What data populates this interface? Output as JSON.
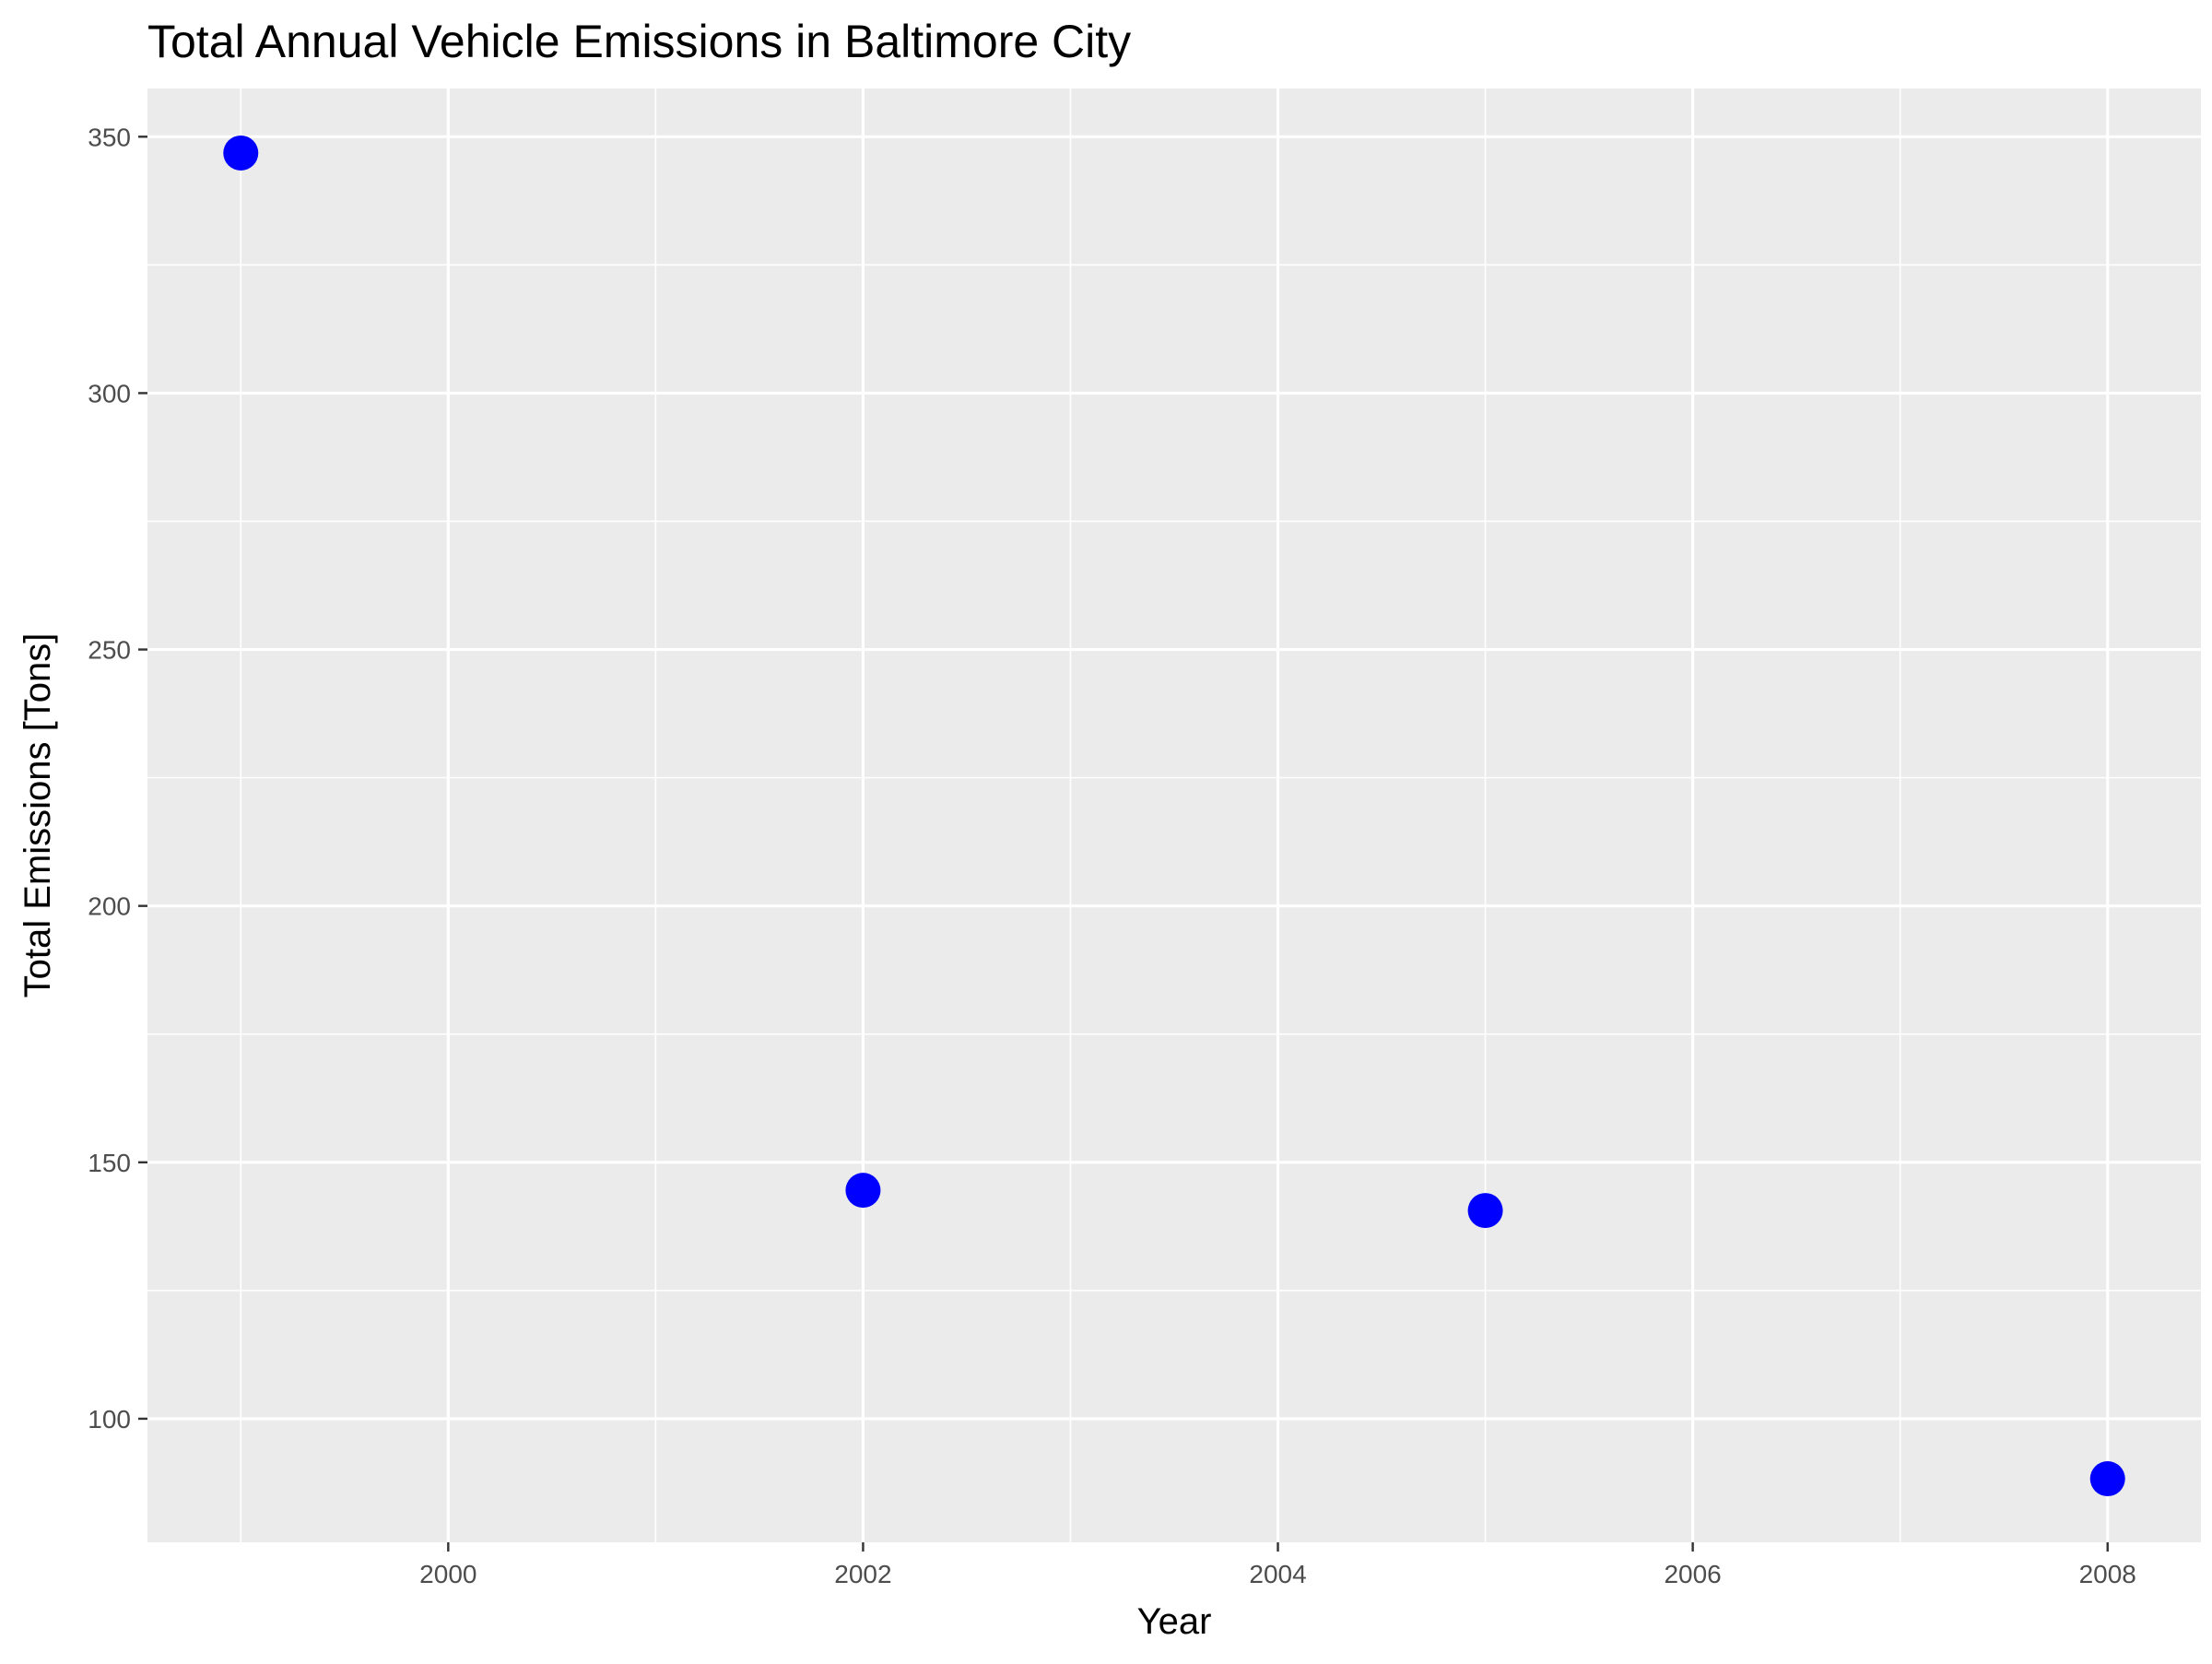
{
  "chart_data": {
    "type": "scatter",
    "title": "Total Annual Vehicle Emissions in Baltimore City",
    "xlabel": "Year",
    "ylabel": "Total Emissions [Tons]",
    "x": [
      1999,
      2002,
      2005,
      2008
    ],
    "y": [
      346.82,
      144.55,
      140.6,
      88.3
    ],
    "xlim": [
      1998.55,
      2008.45
    ],
    "ylim": [
      75.9,
      359.4
    ],
    "xticks": [
      2000,
      2002,
      2004,
      2006,
      2008
    ],
    "xtick_labels": [
      "2000",
      "2002",
      "2004",
      "2006",
      "2008"
    ],
    "yticks": [
      100,
      150,
      200,
      250,
      300,
      350
    ],
    "ytick_labels": [
      "100",
      "150",
      "200",
      "250",
      "300",
      "350"
    ],
    "x_minor": [
      1999,
      2001,
      2003,
      2005,
      2007
    ],
    "y_minor": [
      125,
      175,
      225,
      275,
      325
    ],
    "grid": true,
    "legend": "none",
    "point_color": "#0000FF",
    "panel_background": "#EBEBEB",
    "grid_color": "#FFFFFF"
  }
}
